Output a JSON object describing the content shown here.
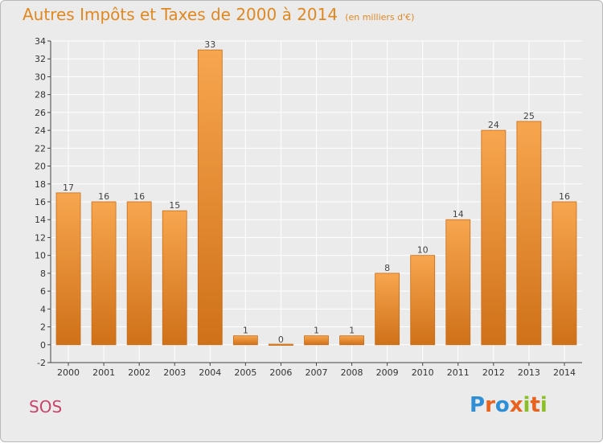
{
  "header": {
    "title": "Autres Impôts et Taxes de 2000 à 2014",
    "subtitle": "(en milliers d'€)"
  },
  "footer": {
    "commune": "SOS",
    "logo_letters": [
      "P",
      "r",
      "o",
      "x",
      "i",
      "t",
      "i"
    ],
    "logo_colors": [
      "#2e8fd6",
      "#e8631e",
      "#2e8fd6",
      "#e8631e",
      "#8cbf26",
      "#e8631e",
      "#8cbf26"
    ]
  },
  "colors": {
    "bar_light": "#f7a64f",
    "bar_dark": "#cf7119",
    "bar_stroke": "#c86c18",
    "axis": "#444444",
    "grid": "#ffffff"
  },
  "chart_data": {
    "type": "bar",
    "title": "Autres Impôts et Taxes de 2000 à 2014",
    "subtitle": "(en milliers d'€)",
    "categories": [
      "2000",
      "2001",
      "2002",
      "2003",
      "2004",
      "2005",
      "2006",
      "2007",
      "2008",
      "2009",
      "2010",
      "2011",
      "2012",
      "2013",
      "2014"
    ],
    "values": [
      17,
      16,
      16,
      15,
      33,
      1,
      0,
      1,
      1,
      8,
      10,
      14,
      24,
      25,
      16
    ],
    "labels": [
      "17",
      "16",
      "16",
      "15",
      "33",
      "1",
      "0",
      "1",
      "1",
      "8",
      "10",
      "14",
      "24",
      "25",
      "16"
    ],
    "ylim": [
      -2,
      34
    ],
    "yticks": [
      -2,
      0,
      2,
      4,
      6,
      8,
      10,
      12,
      14,
      16,
      18,
      20,
      22,
      24,
      26,
      28,
      30,
      32,
      34
    ],
    "xlabel": "",
    "ylabel": "",
    "grid": true,
    "legend": false
  }
}
